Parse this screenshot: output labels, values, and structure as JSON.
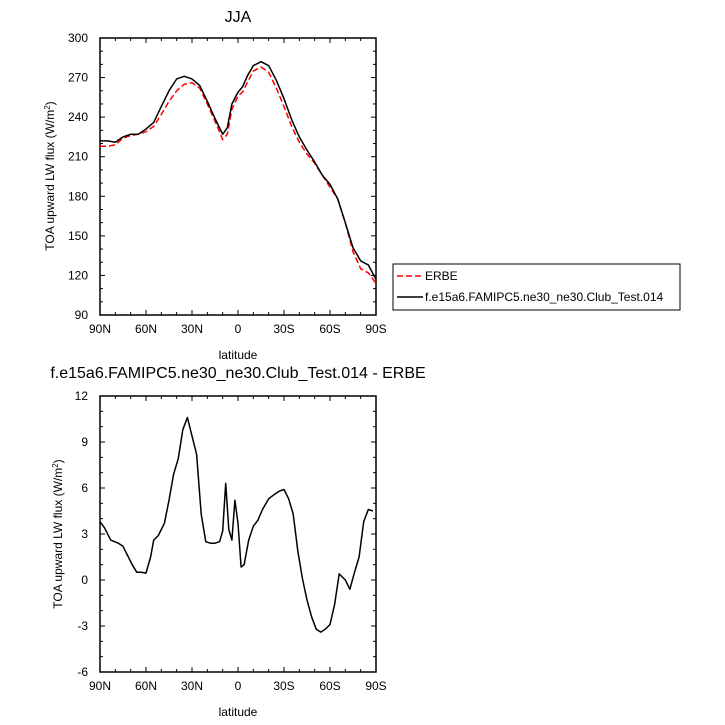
{
  "chart_data": [
    {
      "type": "line",
      "title": "JJA",
      "xlabel": "latitude",
      "ylabel": "TOA upward LW flux (W/m²)",
      "ylabel_main": "TOA upward LW flux (W/m",
      "ylabel_sup": "2",
      "ylabel_end": ")",
      "xlim": [
        90,
        -90
      ],
      "ylim": [
        90,
        300
      ],
      "xticks": [
        90,
        60,
        30,
        0,
        -30,
        -60,
        -90
      ],
      "xtick_labels": [
        "90N",
        "60N",
        "30N",
        "0",
        "30S",
        "60S",
        "90S"
      ],
      "yticks": [
        90,
        120,
        150,
        180,
        210,
        240,
        270,
        300
      ],
      "ytick_labels": [
        "90",
        "120",
        "150",
        "180",
        "210",
        "240",
        "270",
        "300"
      ],
      "legend_position": "right",
      "series": [
        {
          "name": "ERBE",
          "color": "#ff0000",
          "dash": "dashed",
          "x": [
            90,
            85,
            80,
            75,
            70,
            65,
            60,
            55,
            50,
            45,
            40,
            35,
            30,
            25,
            20,
            15,
            10,
            7,
            4,
            0,
            -3,
            -6,
            -10,
            -15,
            -20,
            -25,
            -30,
            -35,
            -40,
            -45,
            -50,
            -55,
            -60,
            -65,
            -70,
            -75,
            -80,
            -85,
            -90
          ],
          "values": [
            218,
            218,
            219,
            224,
            226,
            227,
            229,
            233,
            242,
            252,
            260,
            265,
            266,
            262,
            250,
            237,
            223,
            227,
            246,
            256,
            259,
            266,
            275,
            278,
            274,
            262,
            248,
            233,
            221,
            212,
            205,
            196,
            187,
            178,
            160,
            138,
            125,
            122,
            114
          ]
        },
        {
          "name": "f.e15a6.FAMIPC5.ne30_ne30.Club_Test.014",
          "color": "#000000",
          "dash": "solid",
          "x": [
            90,
            85,
            80,
            75,
            70,
            65,
            60,
            55,
            50,
            45,
            40,
            35,
            30,
            25,
            20,
            15,
            10,
            7,
            4,
            0,
            -3,
            -6,
            -10,
            -15,
            -20,
            -25,
            -30,
            -35,
            -40,
            -45,
            -50,
            -55,
            -60,
            -65,
            -70,
            -75,
            -80,
            -85,
            -90
          ],
          "values": [
            222,
            222,
            221,
            225,
            227,
            227,
            231,
            236,
            248,
            260,
            269,
            271,
            269,
            264,
            252,
            239,
            227,
            232,
            250,
            259,
            263,
            271,
            279,
            282,
            279,
            268,
            254,
            238,
            225,
            215,
            206,
            196,
            189,
            178,
            160,
            141,
            131,
            128,
            117
          ]
        }
      ]
    },
    {
      "type": "line",
      "title": "f.e15a6.FAMIPC5.ne30_ne30.Club_Test.014 - ERBE",
      "xlabel": "latitude",
      "ylabel": "TOA upward LW flux (W/m²)",
      "ylabel_main": "TOA upward LW flux (W/m",
      "ylabel_sup": "2",
      "ylabel_end": ")",
      "xlim": [
        90,
        -90
      ],
      "ylim": [
        -6,
        12
      ],
      "xticks": [
        90,
        60,
        30,
        0,
        -30,
        -60,
        -90
      ],
      "xtick_labels": [
        "90N",
        "60N",
        "30N",
        "0",
        "30S",
        "60S",
        "90S"
      ],
      "yticks": [
        -6,
        -3,
        0,
        3,
        6,
        9,
        12
      ],
      "ytick_labels": [
        "-6",
        "-3",
        "0",
        "3",
        "6",
        "9",
        "12"
      ],
      "series": [
        {
          "color": "#000000",
          "dash": "solid",
          "x": [
            90,
            87,
            83,
            78,
            75,
            72,
            69,
            66,
            63,
            60,
            57,
            55,
            52,
            48,
            45,
            42,
            39,
            36,
            33,
            30,
            27,
            24,
            21,
            18,
            15,
            12,
            10,
            8,
            6,
            4,
            2,
            0,
            -2,
            -4,
            -7,
            -10,
            -13,
            -16,
            -20,
            -24,
            -27,
            -30,
            -33,
            -36,
            -39,
            -42,
            -45,
            -48,
            -51,
            -54,
            -57,
            -60,
            -63,
            -66,
            -70,
            -73,
            -76,
            -79,
            -82,
            -85,
            -88
          ],
          "values": [
            3.8,
            3.4,
            2.6,
            2.4,
            2.2,
            1.6,
            1.0,
            0.5,
            0.5,
            0.45,
            1.5,
            2.6,
            2.9,
            3.7,
            5.2,
            6.9,
            7.9,
            9.8,
            10.6,
            9.4,
            8.2,
            4.3,
            2.5,
            2.4,
            2.4,
            2.5,
            3.2,
            6.3,
            3.3,
            2.6,
            5.2,
            3.7,
            0.85,
            1.0,
            2.6,
            3.5,
            3.9,
            4.6,
            5.3,
            5.6,
            5.8,
            5.9,
            5.3,
            4.3,
            1.9,
            0.1,
            -1.3,
            -2.4,
            -3.2,
            -3.4,
            -3.2,
            -2.9,
            -1.6,
            0.4,
            0.0,
            -0.6,
            0.5,
            1.5,
            3.8,
            4.6,
            4.5
          ]
        }
      ]
    }
  ]
}
